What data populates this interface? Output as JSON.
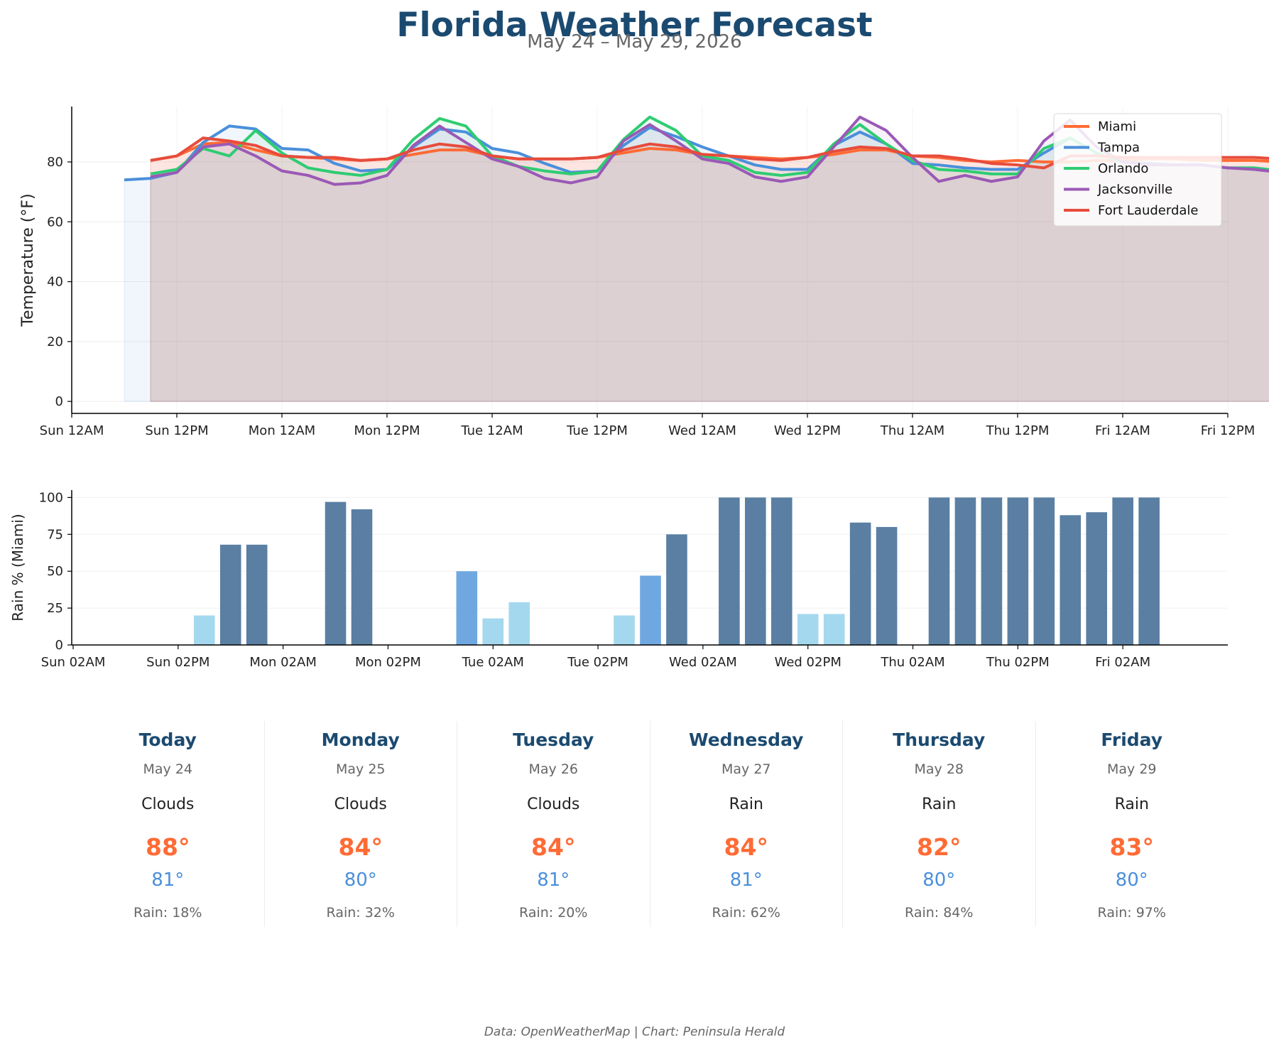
{
  "header": {
    "title": "Florida Weather Forecast",
    "subtitle": "May 24 – May 29, 2026"
  },
  "colors": {
    "title": "#1b4a70",
    "Miami": "#ff6b35",
    "Tampa": "#4a8fdb",
    "Orlando": "#2ecc71",
    "Jacksonville": "#9b59b6",
    "Fort Lauderdale": "#e74c3c",
    "rain_heavy": "#5a7fa3",
    "rain_mid": "#6fa8e0",
    "rain_light": "#a4d8ee"
  },
  "chart_data": [
    {
      "type": "line",
      "ylabel": "Temperature (°F)",
      "xlabel": "",
      "ylim": [
        -4,
        98.5
      ],
      "yticks": [
        0,
        20,
        40,
        60,
        80
      ],
      "x_unit": "hours since Sun 12AM",
      "xlim": [
        0,
        132
      ],
      "xtick_labels": [
        "Sun 12AM",
        "Sun 12PM",
        "Mon 12AM",
        "Mon 12PM",
        "Tue 12AM",
        "Tue 12PM",
        "Wed 12AM",
        "Wed 12PM",
        "Thu 12AM",
        "Thu 12PM",
        "Fri 12AM",
        "Fri 12PM"
      ],
      "xtick_hours": [
        0,
        12,
        24,
        36,
        48,
        60,
        72,
        84,
        96,
        108,
        120,
        132
      ],
      "grid": true,
      "legend": "top-right",
      "area_fill": true,
      "series": [
        {
          "name": "Miami",
          "x": [
            9,
            12,
            15,
            18,
            21,
            24,
            27,
            30,
            33,
            36,
            39,
            42,
            45,
            48,
            51,
            54,
            57,
            60,
            63,
            66,
            69,
            72,
            75,
            78,
            81,
            84,
            87,
            90,
            93,
            96,
            99,
            102,
            105,
            108,
            111,
            114,
            117,
            120,
            123,
            126,
            129,
            132,
            135,
            138
          ],
          "y": [
            80.5,
            82,
            86,
            86.5,
            84,
            82,
            81.5,
            81,
            80.5,
            81,
            82.5,
            84,
            84,
            82,
            81,
            81,
            81,
            81.5,
            83,
            84.5,
            84,
            82.5,
            82,
            81.5,
            81,
            81.5,
            82.5,
            84,
            84,
            82,
            81.5,
            80.5,
            80,
            80.5,
            80,
            80,
            80.5,
            80.5,
            81,
            81,
            80.5,
            80.5,
            80.5,
            80
          ]
        },
        {
          "name": "Tampa",
          "x": [
            6,
            9,
            12,
            15,
            18,
            21,
            24,
            27,
            30,
            33,
            36,
            39,
            42,
            45,
            48,
            51,
            54,
            57,
            60,
            63,
            66,
            69,
            72,
            75,
            78,
            81,
            84,
            87,
            90,
            93,
            96,
            99,
            102,
            105,
            108,
            111,
            114,
            117,
            120,
            123,
            126,
            129,
            132,
            135,
            138
          ],
          "y": [
            74,
            74.5,
            76.5,
            86.5,
            92,
            91,
            84.5,
            84,
            79.5,
            77,
            77.5,
            85,
            91,
            90,
            84.5,
            83,
            79.5,
            76.5,
            77,
            85.5,
            91.5,
            88.5,
            85,
            82,
            79,
            77.5,
            77.5,
            85.5,
            90,
            86,
            79.5,
            79,
            78,
            77.5,
            77.5,
            83,
            88,
            83,
            80,
            79.5,
            79,
            79,
            78,
            78,
            77
          ]
        },
        {
          "name": "Orlando",
          "x": [
            9,
            12,
            15,
            18,
            21,
            24,
            27,
            30,
            33,
            36,
            39,
            42,
            45,
            48,
            51,
            54,
            57,
            60,
            63,
            66,
            69,
            72,
            75,
            78,
            81,
            84,
            87,
            90,
            93,
            96,
            99,
            102,
            105,
            108,
            111,
            114,
            117,
            120,
            123,
            126,
            129,
            132,
            135,
            138
          ],
          "y": [
            76,
            77.5,
            84.5,
            82,
            90.5,
            83,
            78,
            76.5,
            75.5,
            77.5,
            87.5,
            94.5,
            92,
            82,
            78.5,
            77,
            76,
            77,
            87.5,
            95,
            90.5,
            82,
            80.5,
            76.5,
            75.5,
            76.5,
            86,
            92.5,
            86,
            80.5,
            77.5,
            77,
            76,
            76,
            84.5,
            88,
            83,
            80,
            79,
            79,
            79,
            78,
            78,
            77
          ]
        },
        {
          "name": "Jacksonville",
          "x": [
            9,
            12,
            15,
            18,
            21,
            24,
            27,
            30,
            33,
            36,
            39,
            42,
            45,
            48,
            51,
            54,
            57,
            60,
            63,
            66,
            69,
            72,
            75,
            78,
            81,
            84,
            87,
            90,
            93,
            96,
            99,
            102,
            105,
            108,
            111,
            114,
            117,
            120,
            123,
            126,
            129,
            132,
            135,
            138
          ],
          "y": [
            75,
            76.5,
            85,
            86,
            82,
            77,
            75.5,
            72.5,
            73,
            75.5,
            85.5,
            92,
            86.5,
            81,
            78.5,
            74.5,
            73,
            75,
            87,
            92.5,
            87,
            81,
            79.5,
            75,
            73.5,
            75,
            85,
            95,
            90.5,
            81.5,
            73.5,
            75.5,
            73.5,
            75,
            87,
            94,
            85,
            80,
            79,
            79,
            79,
            78,
            77.5,
            76.5
          ]
        },
        {
          "name": "Fort Lauderdale",
          "x": [
            9,
            12,
            15,
            18,
            21,
            24,
            27,
            30,
            33,
            36,
            39,
            42,
            45,
            48,
            51,
            54,
            57,
            60,
            63,
            66,
            69,
            72,
            75,
            78,
            81,
            84,
            87,
            90,
            93,
            96,
            99,
            102,
            105,
            108,
            111,
            114,
            117,
            120,
            123,
            126,
            129,
            132,
            135,
            138
          ],
          "y": [
            80.5,
            82,
            88,
            87,
            85.5,
            82,
            81.5,
            81.5,
            80.5,
            81,
            84,
            86,
            85,
            82,
            81,
            81,
            81,
            81.5,
            84,
            86,
            85,
            82.5,
            82,
            81,
            80.5,
            81.5,
            83.5,
            85,
            84.5,
            82,
            82,
            81,
            79.5,
            79,
            78,
            82,
            82,
            81.5,
            81.5,
            81.5,
            81.5,
            81.5,
            81.5,
            81
          ]
        }
      ]
    },
    {
      "type": "bar",
      "ylabel": "Rain % (Miami)",
      "xlabel": "",
      "ylim": [
        0,
        105
      ],
      "yticks": [
        0,
        25,
        50,
        75,
        100
      ],
      "x_unit": "hours since Sun 02AM",
      "xlim": [
        0,
        132
      ],
      "xtick_labels": [
        "Sun 02AM",
        "Sun 02PM",
        "Mon 02AM",
        "Mon 02PM",
        "Tue 02AM",
        "Tue 02PM",
        "Wed 02AM",
        "Wed 02PM",
        "Thu 02AM",
        "Thu 02PM",
        "Fri 02AM"
      ],
      "xtick_hours": [
        0,
        12,
        24,
        36,
        48,
        60,
        72,
        84,
        96,
        108,
        120
      ],
      "grid": true,
      "x": [
        15,
        18,
        21,
        30,
        33,
        45,
        48,
        51,
        63,
        66,
        69,
        75,
        78,
        81,
        84,
        87,
        90,
        93,
        99,
        102,
        105,
        108,
        111,
        114,
        117,
        120,
        123
      ],
      "values": [
        20,
        68,
        68,
        97,
        92,
        50,
        18,
        29,
        20,
        47,
        75,
        100,
        100,
        100,
        21,
        21,
        83,
        80,
        100,
        100,
        100,
        100,
        100,
        88,
        90,
        100,
        100
      ],
      "colors": [
        "light",
        "heavy",
        "heavy",
        "heavy",
        "heavy",
        "mid",
        "light",
        "light",
        "light",
        "mid",
        "heavy",
        "heavy",
        "heavy",
        "heavy",
        "light",
        "light",
        "heavy",
        "heavy",
        "heavy",
        "heavy",
        "heavy",
        "heavy",
        "heavy",
        "heavy",
        "heavy",
        "heavy",
        "heavy"
      ]
    }
  ],
  "forecast": [
    {
      "day": "Today",
      "date": "May 24",
      "condition": "Clouds",
      "high": "88°",
      "low": "81°",
      "rain": "Rain: 18%"
    },
    {
      "day": "Monday",
      "date": "May 25",
      "condition": "Clouds",
      "high": "84°",
      "low": "80°",
      "rain": "Rain: 32%"
    },
    {
      "day": "Tuesday",
      "date": "May 26",
      "condition": "Clouds",
      "high": "84°",
      "low": "81°",
      "rain": "Rain: 20%"
    },
    {
      "day": "Wednesday",
      "date": "May 27",
      "condition": "Rain",
      "high": "84°",
      "low": "81°",
      "rain": "Rain: 62%"
    },
    {
      "day": "Thursday",
      "date": "May 28",
      "condition": "Rain",
      "high": "82°",
      "low": "80°",
      "rain": "Rain: 84%"
    },
    {
      "day": "Friday",
      "date": "May 29",
      "condition": "Rain",
      "high": "83°",
      "low": "80°",
      "rain": "Rain: 97%"
    }
  ],
  "footer": {
    "credit": "Data: OpenWeatherMap | Chart: Peninsula Herald"
  }
}
